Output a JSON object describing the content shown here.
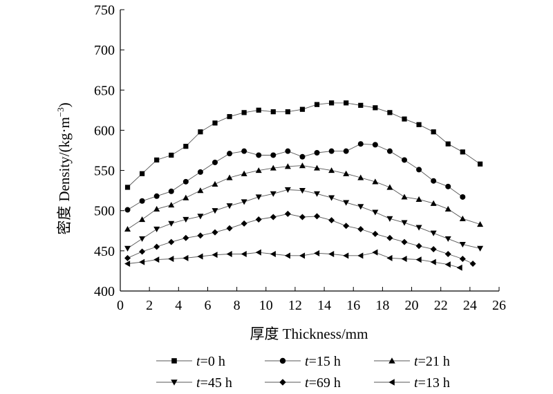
{
  "chart_data": {
    "type": "line",
    "xlabel": "厚度 Thickness/mm",
    "ylabel_cn": "密度",
    "ylabel_en": "Density/(kg·m",
    "ylabel_sup": "−3",
    "ylabel_close": ")",
    "xlim": [
      0,
      26
    ],
    "ylim": [
      400,
      750
    ],
    "xticks": [
      0,
      2,
      4,
      6,
      8,
      10,
      12,
      14,
      16,
      18,
      20,
      22,
      24,
      26
    ],
    "yticks": [
      400,
      450,
      500,
      550,
      600,
      650,
      700,
      750
    ],
    "grid": false,
    "legend_position": "bottom",
    "series": [
      {
        "name_prefix": "t",
        "name_suffix": "=0 h",
        "marker": "square",
        "x": [
          0.5,
          1.5,
          2.5,
          3.5,
          4.5,
          5.5,
          6.5,
          7.5,
          8.5,
          9.5,
          10.5,
          11.5,
          12.5,
          13.5,
          14.5,
          15.5,
          16.5,
          17.5,
          18.5,
          19.5,
          20.5,
          21.5,
          22.5,
          23.5,
          24.7
        ],
        "y": [
          529,
          546,
          563,
          569,
          580,
          598,
          609,
          617,
          622,
          625,
          623,
          623,
          626,
          632,
          634,
          634,
          631,
          628,
          622,
          614,
          607,
          598,
          583,
          573,
          558
        ]
      },
      {
        "name_prefix": "t",
        "name_suffix": "=15 h",
        "marker": "circle",
        "x": [
          0.5,
          1.5,
          2.5,
          3.5,
          4.5,
          5.5,
          6.5,
          7.5,
          8.5,
          9.5,
          10.5,
          11.5,
          12.5,
          13.5,
          14.5,
          15.5,
          16.5,
          17.5,
          18.5,
          19.5,
          20.5,
          21.5,
          22.5,
          23.5
        ],
        "y": [
          501,
          512,
          518,
          524,
          536,
          548,
          560,
          571,
          574,
          569,
          569,
          574,
          567,
          572,
          574,
          574,
          583,
          582,
          574,
          563,
          551,
          537,
          530,
          517
        ]
      },
      {
        "name_prefix": "t",
        "name_suffix": "=21 h",
        "marker": "triangle-up",
        "x": [
          0.5,
          1.5,
          2.5,
          3.5,
          4.5,
          5.5,
          6.5,
          7.5,
          8.5,
          9.5,
          10.5,
          11.5,
          12.5,
          13.5,
          14.5,
          15.5,
          16.5,
          17.5,
          18.5,
          19.5,
          20.5,
          21.5,
          22.5,
          23.5,
          24.7
        ],
        "y": [
          477,
          489,
          502,
          507,
          516,
          525,
          533,
          541,
          546,
          550,
          553,
          555,
          556,
          553,
          550,
          546,
          541,
          536,
          529,
          517,
          514,
          509,
          502,
          490,
          483
        ]
      },
      {
        "name_prefix": "t",
        "name_suffix": "=45 h",
        "marker": "triangle-down",
        "x": [
          0.5,
          1.5,
          2.5,
          3.5,
          4.5,
          5.5,
          6.5,
          7.5,
          8.5,
          9.5,
          10.5,
          11.5,
          12.5,
          13.5,
          14.5,
          15.5,
          16.5,
          17.5,
          18.5,
          19.5,
          20.5,
          21.5,
          22.5,
          23.5,
          24.7
        ],
        "y": [
          453,
          465,
          477,
          484,
          489,
          493,
          500,
          506,
          511,
          517,
          521,
          526,
          525,
          521,
          516,
          510,
          505,
          498,
          490,
          485,
          479,
          472,
          465,
          458,
          453
        ]
      },
      {
        "name_prefix": "t",
        "name_suffix": "=69 h",
        "marker": "diamond",
        "x": [
          0.5,
          1.5,
          2.5,
          3.5,
          4.5,
          5.5,
          6.5,
          7.5,
          8.5,
          9.5,
          10.5,
          11.5,
          12.5,
          13.5,
          14.5,
          15.5,
          16.5,
          17.5,
          18.5,
          19.5,
          20.5,
          21.5,
          22.5,
          23.5,
          24.2
        ],
        "y": [
          441,
          449,
          455,
          461,
          466,
          469,
          473,
          478,
          484,
          489,
          492,
          496,
          492,
          493,
          488,
          481,
          477,
          471,
          466,
          461,
          456,
          452,
          446,
          440,
          434
        ]
      },
      {
        "name_prefix": "t",
        "name_suffix": "=13 h",
        "marker": "triangle-left",
        "x": [
          0.5,
          1.5,
          2.5,
          3.5,
          4.5,
          5.5,
          6.5,
          7.5,
          8.5,
          9.5,
          10.5,
          11.5,
          12.5,
          13.5,
          14.5,
          15.5,
          16.5,
          17.5,
          18.5,
          19.5,
          20.5,
          21.5,
          22.5,
          23.3
        ],
        "y": [
          434,
          436,
          439,
          440,
          441,
          443,
          445,
          446,
          446,
          448,
          446,
          444,
          444,
          447,
          446,
          444,
          444,
          448,
          441,
          440,
          439,
          436,
          433,
          429
        ]
      }
    ]
  }
}
